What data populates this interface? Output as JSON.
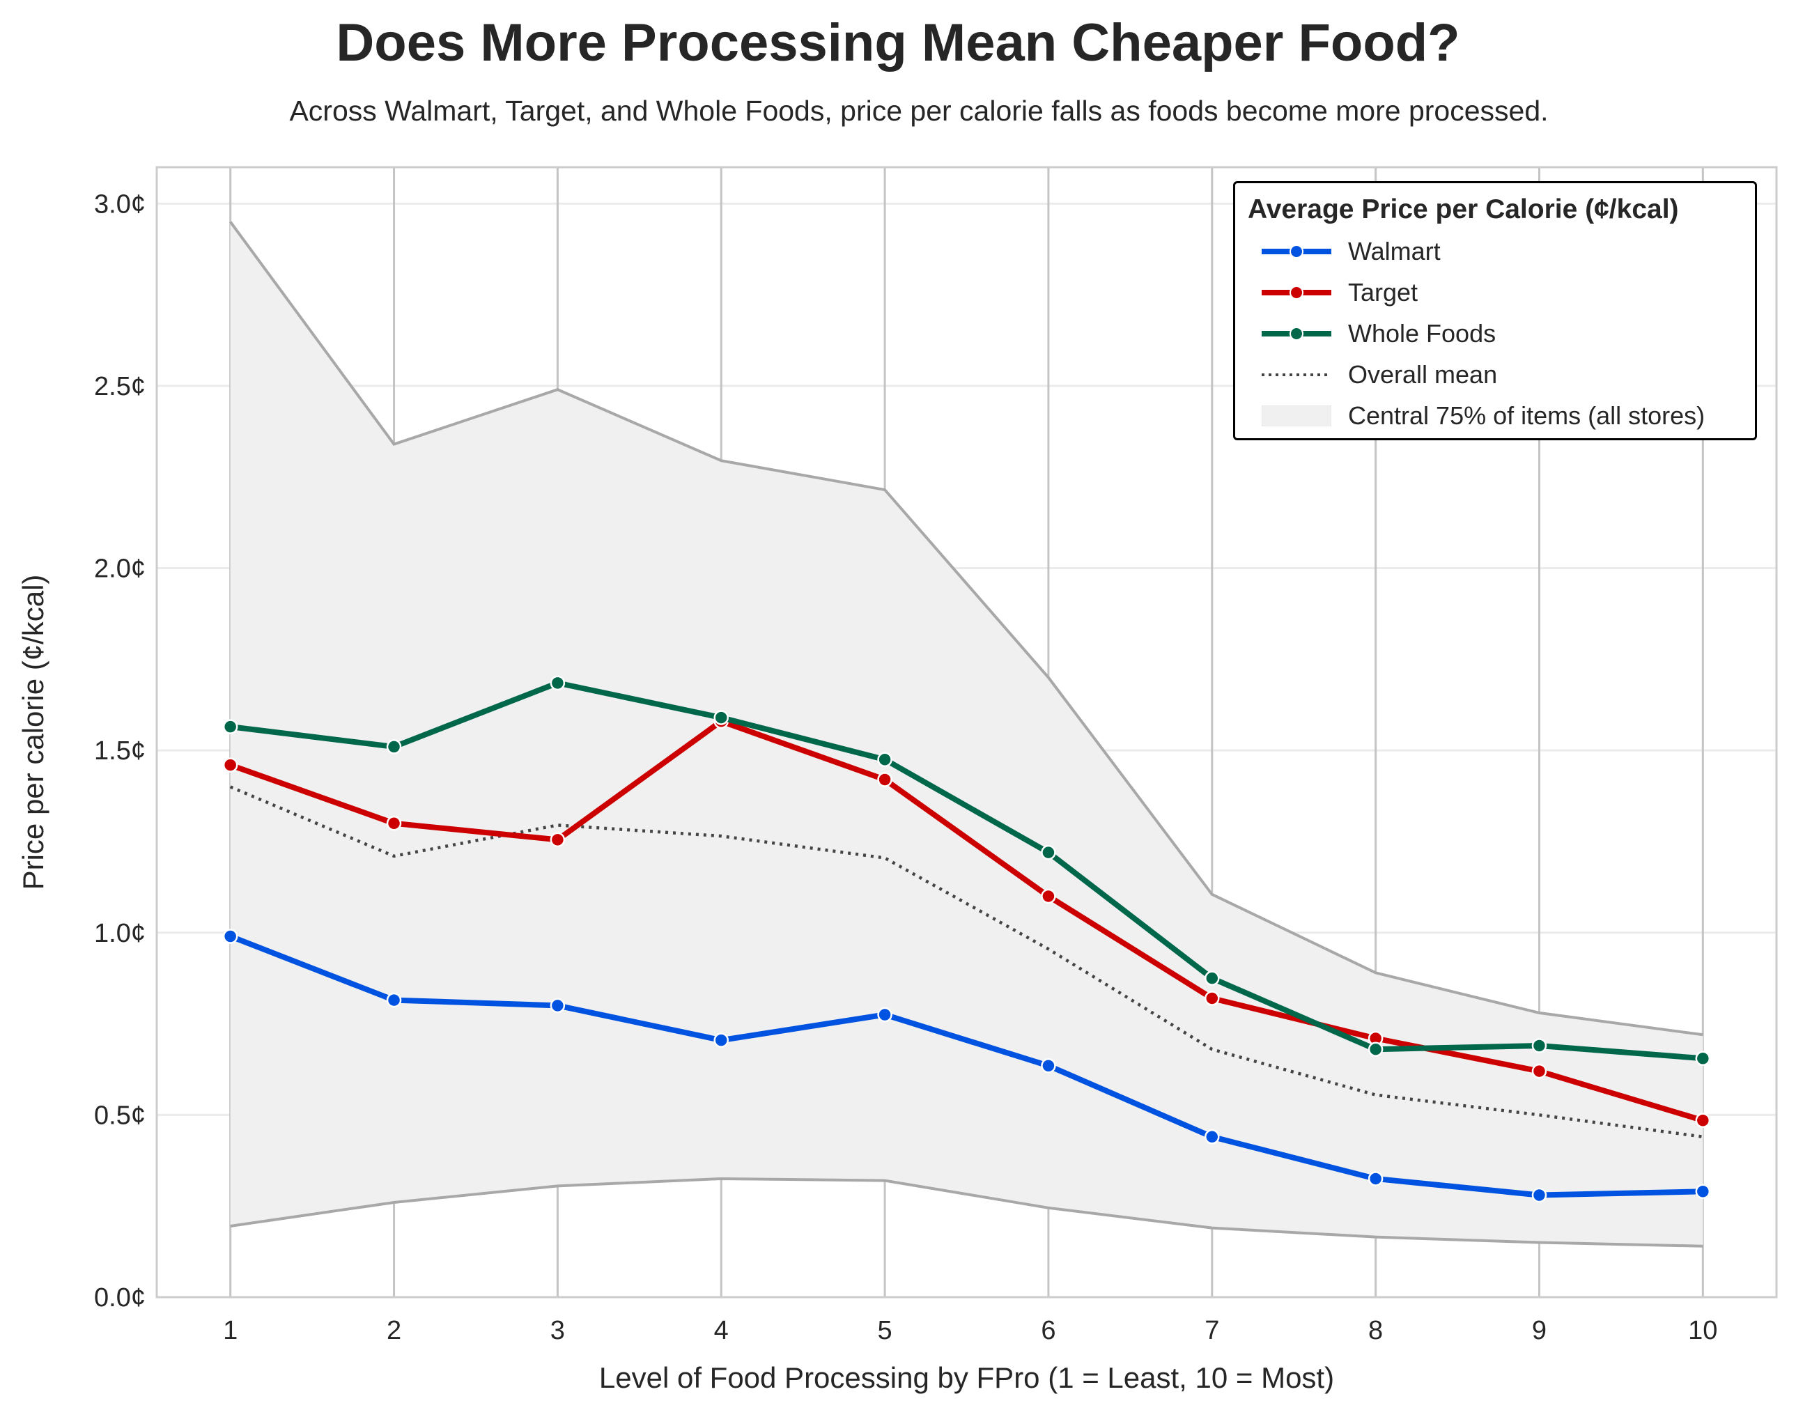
{
  "title": "Does More Processing Mean Cheaper Food?",
  "subtitle": "Across Walmart, Target, and Whole Foods, price per calorie falls as foods become more processed.",
  "chart_data": {
    "type": "line",
    "xlabel": "Level of Food Processing by FPro (1 = Least, 10 = Most)",
    "ylabel": "Price per calorie (¢/kcal)",
    "x": [
      1,
      2,
      3,
      4,
      5,
      6,
      7,
      8,
      9,
      10
    ],
    "x_tick_labels": [
      "1",
      "2",
      "3",
      "4",
      "5",
      "6",
      "7",
      "8",
      "9",
      "10"
    ],
    "xlim": [
      0.55,
      10.45
    ],
    "ylim": [
      0,
      3.1
    ],
    "y_ticks": [
      0,
      0.5,
      1.0,
      1.5,
      2.0,
      2.5,
      3.0
    ],
    "y_tick_labels": [
      "0.0¢",
      "0.5¢",
      "1.0¢",
      "1.5¢",
      "2.0¢",
      "2.5¢",
      "3.0¢"
    ],
    "grid": true,
    "legend_title": "Average Price per Calorie (¢/kcal)",
    "legend_position": "top-right",
    "series": [
      {
        "name": "Walmart",
        "color": "#0052E0",
        "style": "solid-markers",
        "values": [
          0.99,
          0.815,
          0.8,
          0.705,
          0.775,
          0.635,
          0.44,
          0.325,
          0.28,
          0.29
        ]
      },
      {
        "name": "Target",
        "color": "#CC0000",
        "style": "solid-markers",
        "values": [
          1.46,
          1.3,
          1.255,
          1.58,
          1.42,
          1.1,
          0.82,
          0.71,
          0.62,
          0.485
        ]
      },
      {
        "name": "Whole Foods",
        "color": "#00674B",
        "style": "solid-markers",
        "values": [
          1.565,
          1.51,
          1.685,
          1.59,
          1.475,
          1.22,
          0.875,
          0.68,
          0.69,
          0.655
        ]
      },
      {
        "name": "Overall mean",
        "color": "#444444",
        "style": "dotted",
        "values": [
          1.4,
          1.21,
          1.295,
          1.265,
          1.205,
          0.955,
          0.68,
          0.555,
          0.5,
          0.44
        ]
      }
    ],
    "band": {
      "name": "Central 75% of items (all stores)",
      "fill": "#F0F0F0",
      "edge_color": "#A8A8A8",
      "upper": [
        2.95,
        2.34,
        2.49,
        2.295,
        2.215,
        1.7,
        1.105,
        0.89,
        0.78,
        0.72
      ],
      "lower": [
        0.195,
        0.26,
        0.305,
        0.325,
        0.32,
        0.245,
        0.19,
        0.165,
        0.15,
        0.14
      ]
    }
  }
}
